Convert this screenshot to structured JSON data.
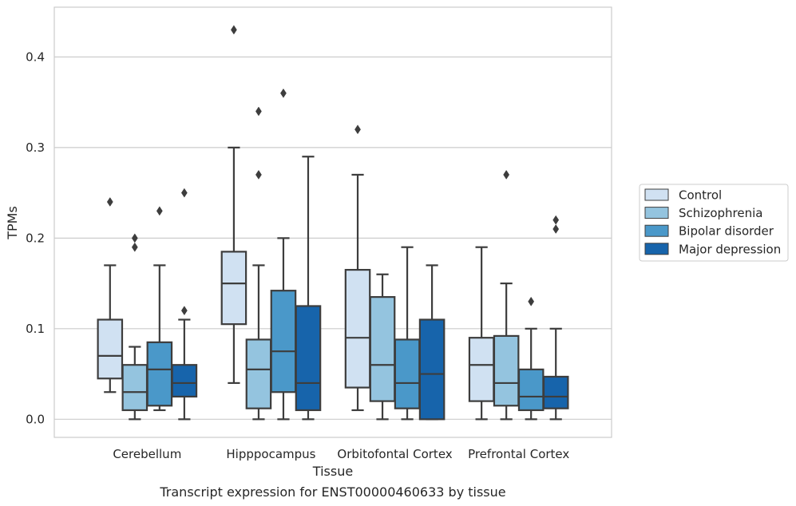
{
  "chart_data": {
    "type": "box",
    "title": "",
    "caption": "Transcript expression for ENST00000460633 by tissue",
    "xlabel": "Tissue",
    "ylabel": "TPMs",
    "ylim": [
      -0.02,
      0.455
    ],
    "yticks": [
      0.0,
      0.1,
      0.2,
      0.3,
      0.4
    ],
    "ytick_labels": [
      "0.0",
      "0.1",
      "0.2",
      "0.3",
      "0.4"
    ],
    "grid": "horizontal",
    "legend_position": "right",
    "categories": [
      "Cerebellum",
      "Hipppocampus",
      "Orbitofontal Cortex",
      "Prefrontal Cortex"
    ],
    "series": [
      {
        "name": "Control",
        "color": "#d0e1f2",
        "boxes": [
          {
            "whislo": 0.03,
            "q1": 0.045,
            "med": 0.07,
            "q3": 0.11,
            "whishi": 0.17,
            "fliers": [
              0.24
            ]
          },
          {
            "whislo": 0.04,
            "q1": 0.105,
            "med": 0.15,
            "q3": 0.185,
            "whishi": 0.3,
            "fliers": [
              0.43
            ]
          },
          {
            "whislo": 0.01,
            "q1": 0.035,
            "med": 0.09,
            "q3": 0.165,
            "whishi": 0.27,
            "fliers": [
              0.32
            ]
          },
          {
            "whislo": 0.0,
            "q1": 0.02,
            "med": 0.06,
            "q3": 0.09,
            "whishi": 0.19,
            "fliers": []
          }
        ]
      },
      {
        "name": "Schizophrenia",
        "color": "#94c4df",
        "boxes": [
          {
            "whislo": 0.0,
            "q1": 0.01,
            "med": 0.03,
            "q3": 0.06,
            "whishi": 0.08,
            "fliers": [
              0.19,
              0.2
            ]
          },
          {
            "whislo": 0.0,
            "q1": 0.012,
            "med": 0.055,
            "q3": 0.088,
            "whishi": 0.17,
            "fliers": [
              0.27,
              0.34
            ]
          },
          {
            "whislo": 0.0,
            "q1": 0.02,
            "med": 0.06,
            "q3": 0.135,
            "whishi": 0.16,
            "fliers": []
          },
          {
            "whislo": 0.0,
            "q1": 0.015,
            "med": 0.04,
            "q3": 0.092,
            "whishi": 0.15,
            "fliers": [
              0.27
            ]
          }
        ]
      },
      {
        "name": "Bipolar disorder",
        "color": "#4a98c9",
        "boxes": [
          {
            "whislo": 0.01,
            "q1": 0.015,
            "med": 0.055,
            "q3": 0.085,
            "whishi": 0.17,
            "fliers": [
              0.23
            ]
          },
          {
            "whislo": 0.0,
            "q1": 0.03,
            "med": 0.075,
            "q3": 0.142,
            "whishi": 0.2,
            "fliers": [
              0.36
            ]
          },
          {
            "whislo": 0.0,
            "q1": 0.012,
            "med": 0.04,
            "q3": 0.088,
            "whishi": 0.19,
            "fliers": []
          },
          {
            "whislo": 0.0,
            "q1": 0.01,
            "med": 0.025,
            "q3": 0.055,
            "whishi": 0.1,
            "fliers": [
              0.13
            ]
          }
        ]
      },
      {
        "name": "Major depression",
        "color": "#1764ab",
        "boxes": [
          {
            "whislo": 0.0,
            "q1": 0.025,
            "med": 0.04,
            "q3": 0.06,
            "whishi": 0.11,
            "fliers": [
              0.12,
              0.25
            ]
          },
          {
            "whislo": 0.0,
            "q1": 0.01,
            "med": 0.04,
            "q3": 0.125,
            "whishi": 0.29,
            "fliers": []
          },
          {
            "whislo": 0.0,
            "q1": 0.0,
            "med": 0.05,
            "q3": 0.11,
            "whishi": 0.17,
            "fliers": []
          },
          {
            "whislo": 0.0,
            "q1": 0.012,
            "med": 0.025,
            "q3": 0.047,
            "whishi": 0.1,
            "fliers": [
              0.21,
              0.22
            ]
          }
        ]
      }
    ]
  }
}
